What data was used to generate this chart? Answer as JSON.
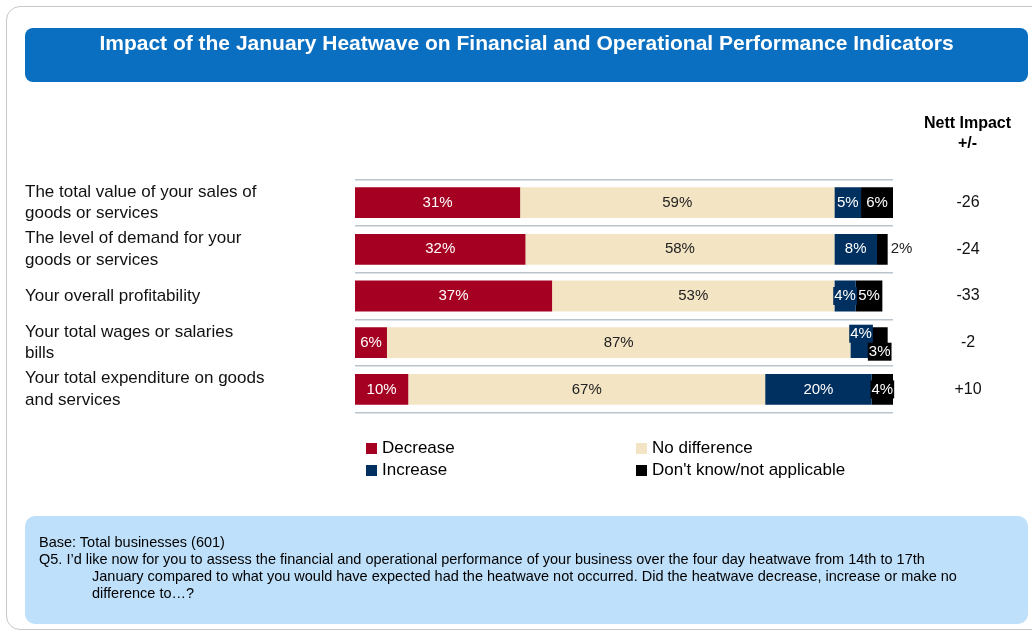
{
  "chart_data": {
    "type": "bar",
    "orientation": "horizontal",
    "stacked": true,
    "title": "Impact of the January Heatwave on Financial and Operational Performance Indicators",
    "categories": [
      "The total value of your sales of goods or services",
      "The level of demand for your goods or services",
      "Your overall profitability",
      "Your total wages or salaries bills",
      "Your total expenditure on goods and services"
    ],
    "series": [
      {
        "name": "Decrease",
        "color": "#a50021",
        "values": [
          31,
          32,
          37,
          6,
          10
        ],
        "value_labels": [
          "31%",
          "32%",
          "37%",
          "6%",
          "10%"
        ]
      },
      {
        "name": "No difference",
        "color": "#f3e4c4",
        "values": [
          59,
          58,
          53,
          87,
          67
        ],
        "value_labels": [
          "59%",
          "58%",
          "53%",
          "87%",
          "67%"
        ]
      },
      {
        "name": "Increase",
        "color": "#00305f",
        "values": [
          5,
          8,
          4,
          4,
          20
        ],
        "value_labels": [
          "5%",
          "8%",
          "4%",
          "4%",
          "20%"
        ]
      },
      {
        "name": "Don't know/not applicable",
        "color": "#000000",
        "values": [
          6,
          2,
          5,
          3,
          4
        ],
        "value_labels": [
          "6%",
          "2%",
          "5%",
          "3%",
          "4%"
        ]
      }
    ],
    "grid": "y",
    "legend": "bottom",
    "annotations": [
      "Nett Impact +/-",
      "-26",
      "-24",
      "-33",
      "-2",
      "+10",
      "Base:  Total businesses (601)",
      "Q5.   I’d like now for you to assess the financial and operational performance of your business over the four day heatwave from 14th to 17th January compared to what you would have expected had the heatwave not occurred.  Did the heatwave decrease, increase or make no difference to…?"
    ]
  }
}
